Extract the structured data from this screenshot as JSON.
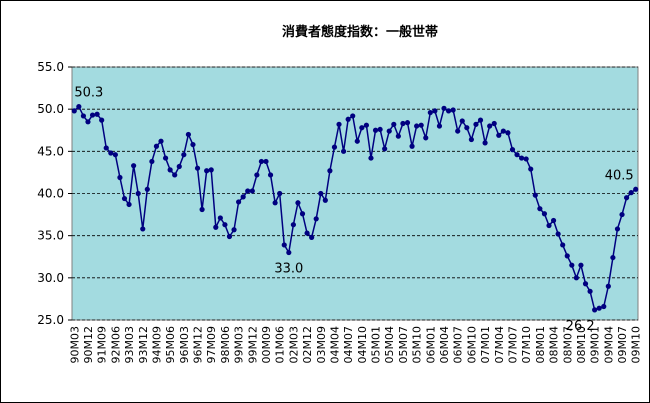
{
  "chart_data": {
    "type": "line",
    "title": "消費者態度指数：一般世帯",
    "categories": [
      "90M03",
      null,
      null,
      "90M12",
      null,
      null,
      "91M09",
      null,
      null,
      "92M06",
      null,
      null,
      "93M03",
      null,
      null,
      "93M12",
      null,
      null,
      "94M09",
      null,
      null,
      "95M06",
      null,
      null,
      "96M03",
      null,
      null,
      "96M12",
      null,
      null,
      "97M09",
      null,
      null,
      "98M06",
      null,
      null,
      "99M03",
      null,
      null,
      "99M12",
      null,
      null,
      "00M09",
      null,
      null,
      "01M06",
      null,
      null,
      "02M03",
      null,
      null,
      "02M12",
      null,
      null,
      "03M09",
      null,
      null,
      "04M04",
      null,
      null,
      "04M07",
      null,
      null,
      "04M10",
      null,
      null,
      "05M01",
      null,
      null,
      "05M04",
      null,
      null,
      "05M07",
      null,
      null,
      "05M10",
      null,
      null,
      "06M01",
      null,
      null,
      "06M04",
      null,
      null,
      "06M07",
      null,
      null,
      "06M10",
      null,
      null,
      "07M01",
      null,
      null,
      "07M04",
      null,
      null,
      "07M07",
      null,
      null,
      "07M10",
      null,
      null,
      "08M01",
      null,
      null,
      "08M04",
      null,
      null,
      "08M07",
      null,
      null,
      "08M10",
      null,
      null,
      "09M01",
      null,
      null,
      "09M04",
      null,
      null,
      "09M07",
      null,
      null,
      "09M10"
    ],
    "values": [
      49.8,
      50.3,
      49.2,
      48.5,
      49.3,
      49.4,
      48.7,
      45.4,
      44.8,
      44.6,
      41.9,
      39.4,
      38.7,
      43.3,
      40.0,
      35.8,
      40.5,
      43.8,
      45.6,
      46.2,
      44.2,
      42.8,
      42.2,
      43.2,
      44.6,
      47.0,
      45.8,
      43.0,
      38.1,
      42.7,
      42.8,
      36.0,
      37.1,
      36.3,
      34.9,
      35.7,
      39.0,
      39.6,
      40.3,
      40.3,
      42.2,
      43.8,
      43.8,
      42.2,
      38.9,
      40.0,
      33.9,
      33.0,
      36.3,
      38.9,
      37.6,
      35.3,
      34.8,
      37.0,
      40.0,
      39.2,
      42.7,
      45.5,
      48.2,
      45.0,
      48.8,
      49.2,
      46.2,
      47.8,
      48.1,
      44.2,
      47.5,
      47.6,
      45.3,
      47.4,
      48.2,
      46.8,
      48.3,
      48.4,
      45.6,
      48.0,
      48.1,
      46.6,
      49.6,
      49.8,
      48.0,
      50.1,
      49.8,
      49.9,
      47.4,
      48.6,
      47.8,
      46.4,
      48.2,
      48.7,
      46.0,
      48.0,
      48.3,
      46.9,
      47.4,
      47.2,
      45.2,
      44.6,
      44.2,
      44.1,
      42.9,
      39.8,
      38.2,
      37.6,
      36.2,
      36.8,
      35.2,
      33.9,
      32.6,
      31.5,
      30.0,
      31.5,
      29.3,
      28.4,
      26.2,
      26.4,
      26.6,
      29.0,
      32.4,
      35.8,
      37.5,
      39.5,
      40.1,
      40.5
    ],
    "value_labels": [
      null,
      "50.3",
      null,
      null,
      null,
      null,
      null,
      null,
      null,
      null,
      null,
      null,
      null,
      null,
      null,
      null,
      null,
      null,
      null,
      null,
      null,
      null,
      null,
      null,
      null,
      null,
      null,
      null,
      null,
      null,
      null,
      null,
      null,
      null,
      null,
      null,
      null,
      null,
      null,
      null,
      null,
      null,
      null,
      null,
      null,
      null,
      null,
      "33.0",
      null,
      null,
      null,
      null,
      null,
      null,
      null,
      null,
      null,
      null,
      null,
      null,
      null,
      null,
      null,
      null,
      null,
      null,
      null,
      null,
      null,
      null,
      null,
      null,
      null,
      null,
      null,
      null,
      null,
      null,
      null,
      null,
      null,
      null,
      null,
      null,
      null,
      null,
      null,
      null,
      null,
      null,
      null,
      null,
      null,
      null,
      null,
      null,
      null,
      null,
      null,
      null,
      null,
      null,
      null,
      null,
      null,
      null,
      null,
      null,
      null,
      null,
      null,
      null,
      null,
      null,
      "26.2",
      null,
      null,
      null,
      null,
      null,
      null,
      null,
      null,
      "40.5"
    ],
    "color": "#000080",
    "background": "#a3dbe0",
    "ylim": [
      25,
      55
    ],
    "yticks": [
      {
        "value": 25,
        "label": "25.0"
      },
      {
        "value": 30,
        "label": "30.0"
      },
      {
        "value": 35,
        "label": "35.0"
      },
      {
        "value": 40,
        "label": "40.0"
      },
      {
        "value": 45,
        "label": "45.0"
      },
      {
        "value": 50,
        "label": "50.0"
      },
      {
        "value": 55,
        "label": "55.0"
      }
    ],
    "grid": true
  }
}
